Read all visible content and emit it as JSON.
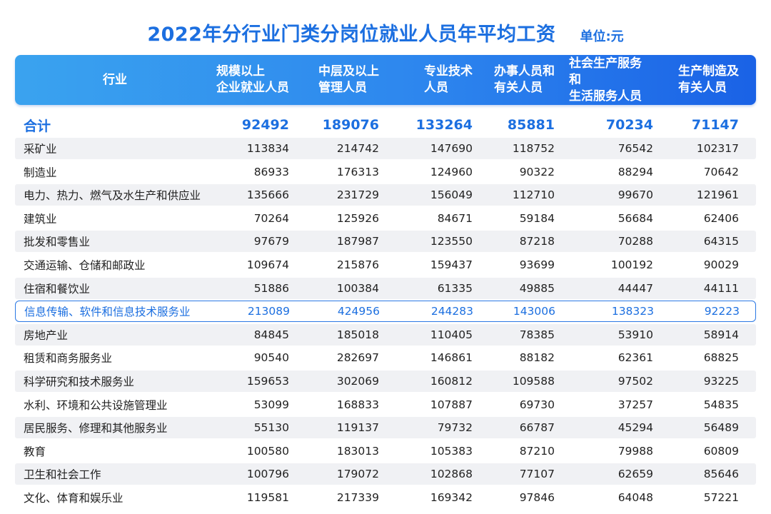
{
  "title": "2022年分行业门类分岗位就业人员年平均工资",
  "unit": "单位:元",
  "chart_data": {
    "type": "table",
    "columns": [
      "行业",
      "规模以上\n企业就业人员",
      "中层及以上\n管理人员",
      "专业技术\n人员",
      "办事人员和\n有关人员",
      "社会生产服务和\n生活服务人员",
      "生产制造及\n有关人员"
    ],
    "total": {
      "label": "合计",
      "values": [
        92492,
        189076,
        133264,
        85881,
        70234,
        71147
      ]
    },
    "highlight_row": 7,
    "rows": [
      {
        "label": "采矿业",
        "values": [
          113834,
          214742,
          147690,
          118752,
          76542,
          102317
        ]
      },
      {
        "label": "制造业",
        "values": [
          86933,
          176313,
          124960,
          90322,
          88294,
          70642
        ]
      },
      {
        "label": "电力、热力、燃气及水生产和供应业",
        "values": [
          135666,
          231729,
          156049,
          112710,
          99670,
          121961
        ]
      },
      {
        "label": "建筑业",
        "values": [
          70264,
          125926,
          84671,
          59184,
          56684,
          62406
        ]
      },
      {
        "label": "批发和零售业",
        "values": [
          97679,
          187987,
          123550,
          87218,
          70288,
          64315
        ]
      },
      {
        "label": "交通运输、仓储和邮政业",
        "values": [
          109674,
          215876,
          159437,
          93699,
          100192,
          90029
        ]
      },
      {
        "label": "住宿和餐饮业",
        "values": [
          51886,
          100384,
          61335,
          49885,
          44447,
          44111
        ]
      },
      {
        "label": "信息传输、软件和信息技术服务业",
        "values": [
          213089,
          424956,
          244283,
          143006,
          138323,
          92223
        ]
      },
      {
        "label": "房地产业",
        "values": [
          84845,
          185018,
          110405,
          78385,
          53910,
          58914
        ]
      },
      {
        "label": "租赁和商务服务业",
        "values": [
          90540,
          282697,
          146861,
          88182,
          62361,
          68825
        ]
      },
      {
        "label": "科学研究和技术服务业",
        "values": [
          159653,
          302069,
          160812,
          109588,
          97502,
          93225
        ]
      },
      {
        "label": "水利、环境和公共设施管理业",
        "values": [
          53099,
          168833,
          107887,
          69730,
          37257,
          54835
        ]
      },
      {
        "label": "居民服务、修理和其他服务业",
        "values": [
          55130,
          119137,
          79732,
          66787,
          45294,
          56489
        ]
      },
      {
        "label": "教育",
        "values": [
          100580,
          183013,
          105383,
          87210,
          79988,
          60809
        ]
      },
      {
        "label": "卫生和社会工作",
        "values": [
          100796,
          179072,
          102868,
          77107,
          62659,
          85646
        ]
      },
      {
        "label": "文化、体育和娱乐业",
        "values": [
          119581,
          217339,
          169342,
          97846,
          64048,
          57221
        ]
      }
    ],
    "colors": {
      "accent": "#1c6fe0",
      "header_start": "#3aa3ef",
      "header_end": "#1a62e6",
      "stripe": "#f0f1f4"
    }
  }
}
